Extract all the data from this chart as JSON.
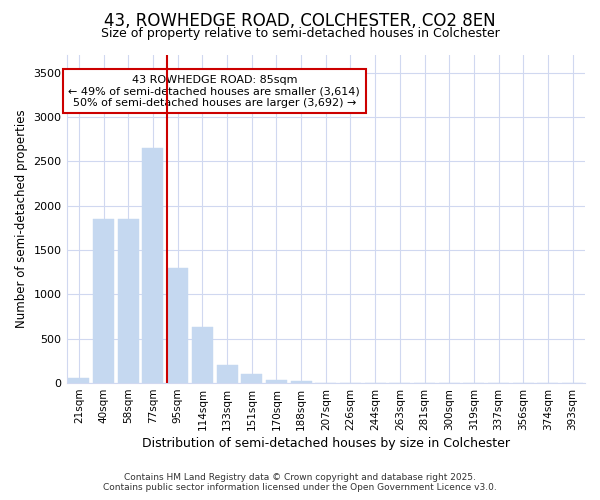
{
  "title": "43, ROWHEDGE ROAD, COLCHESTER, CO2 8EN",
  "subtitle": "Size of property relative to semi-detached houses in Colchester",
  "xlabel": "Distribution of semi-detached houses by size in Colchester",
  "ylabel": "Number of semi-detached properties",
  "categories": [
    "21sqm",
    "40sqm",
    "58sqm",
    "77sqm",
    "95sqm",
    "114sqm",
    "133sqm",
    "151sqm",
    "170sqm",
    "188sqm",
    "207sqm",
    "226sqm",
    "244sqm",
    "263sqm",
    "281sqm",
    "300sqm",
    "319sqm",
    "337sqm",
    "356sqm",
    "374sqm",
    "393sqm"
  ],
  "values": [
    60,
    1850,
    1850,
    2650,
    1300,
    630,
    200,
    100,
    40,
    20,
    5,
    2,
    1,
    0,
    0,
    0,
    0,
    0,
    0,
    0,
    0
  ],
  "bar_color": "#c5d8f0",
  "bar_edgecolor": "#c5d8f0",
  "annotation_text": "43 ROWHEDGE ROAD: 85sqm\n← 49% of semi-detached houses are smaller (3,614)\n50% of semi-detached houses are larger (3,692) →",
  "annotation_box_facecolor": "#ffffff",
  "annotation_box_edgecolor": "#cc0000",
  "footer_line1": "Contains HM Land Registry data © Crown copyright and database right 2025.",
  "footer_line2": "Contains public sector information licensed under the Open Government Licence v3.0.",
  "ylim": [
    0,
    3700
  ],
  "yticks": [
    0,
    500,
    1000,
    1500,
    2000,
    2500,
    3000,
    3500
  ],
  "background_color": "#ffffff",
  "grid_color": "#d0d8f0",
  "property_bar_index": 4,
  "red_line_color": "#cc0000",
  "title_fontsize": 12,
  "subtitle_fontsize": 9
}
